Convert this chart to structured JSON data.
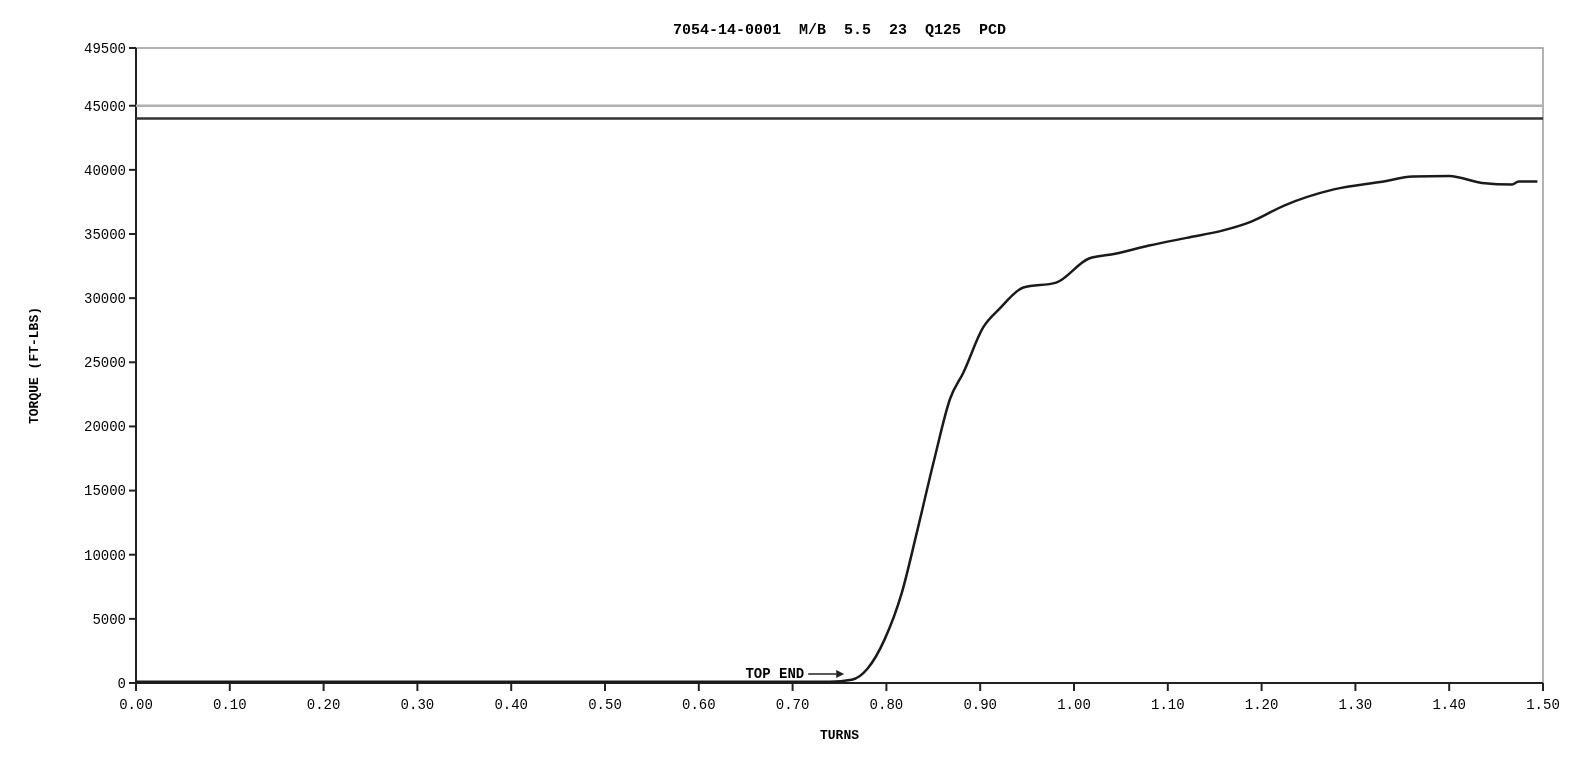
{
  "chart_data": {
    "type": "line",
    "title": "7054-14-0001  M/B  5.5  23  Q125  PCD",
    "xlabel": "TURNS",
    "ylabel": "TORQUE (FT-LBS)",
    "xlim": [
      0,
      1.5
    ],
    "xticks": [
      {
        "value": 0,
        "label": "0.00"
      },
      {
        "value": 0.1,
        "label": "0.10"
      },
      {
        "value": 0.2,
        "label": "0.20"
      },
      {
        "value": 0.3,
        "label": "0.30"
      },
      {
        "value": 0.4,
        "label": "0.40"
      },
      {
        "value": 0.5,
        "label": "0.50"
      },
      {
        "value": 0.6,
        "label": "0.60"
      },
      {
        "value": 0.7,
        "label": "0.70"
      },
      {
        "value": 0.8,
        "label": "0.80"
      },
      {
        "value": 0.9,
        "label": "0.90"
      },
      {
        "value": 1,
        "label": "1.00"
      },
      {
        "value": 1.1,
        "label": "1.10"
      },
      {
        "value": 1.2,
        "label": "1.20"
      },
      {
        "value": 1.3,
        "label": "1.30"
      },
      {
        "value": 1.4,
        "label": "1.40"
      },
      {
        "value": 1.5,
        "label": "1.50"
      }
    ],
    "ylim": [
      0,
      49500
    ],
    "yticks": [
      0,
      5000,
      10000,
      15000,
      20000,
      25000,
      30000,
      35000,
      40000,
      45000,
      49500
    ],
    "grid": false,
    "series": [
      {
        "color": "#1a1a1a",
        "x": [
          0,
          0.2,
          0.4,
          0.6,
          0.74,
          0.763,
          0.78,
          0.798,
          0.816,
          0.833,
          0.851,
          0.868,
          0.882,
          0.903,
          0.921,
          0.946,
          0.981,
          1.016,
          1.044,
          1.08,
          1.12,
          1.16,
          1.189,
          1.224,
          1.277,
          1.33,
          1.361,
          1.4,
          1.435,
          1.467,
          1.474,
          1.494
        ],
        "values": [
          100,
          100,
          100,
          100,
          100,
          250,
          1130,
          3380,
          6920,
          11900,
          17420,
          22180,
          24190,
          27700,
          29200,
          30830,
          31210,
          33090,
          33460,
          34100,
          34700,
          35300,
          35970,
          37220,
          38480,
          39100,
          39480,
          39530,
          38980,
          38860,
          39100,
          39100
        ]
      }
    ],
    "ref_lines": [
      {
        "axis": "y",
        "value": 45000,
        "color": "#b0b0b0"
      },
      {
        "axis": "y",
        "value": 44000,
        "color": "#333333"
      }
    ],
    "annotations": [
      {
        "text": "TOP END",
        "x": 0.755,
        "y": 0
      }
    ]
  }
}
